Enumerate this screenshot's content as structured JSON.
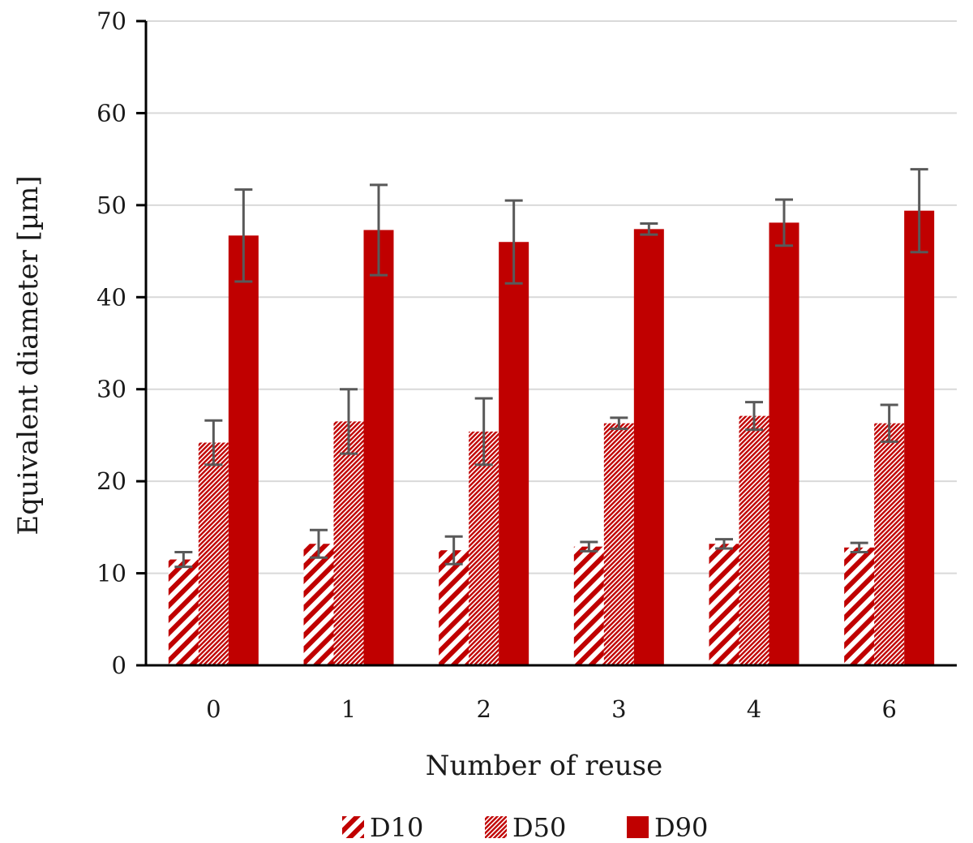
{
  "chart_data": {
    "type": "bar",
    "xlabel": "Number of reuse",
    "ylabel": "Equivalent diameter  [µm]",
    "ylim": [
      0,
      70
    ],
    "yticks": [
      0,
      10,
      20,
      30,
      40,
      50,
      60,
      70
    ],
    "grid": true,
    "legend_position": "bottom",
    "categories": [
      "0",
      "1",
      "2",
      "3",
      "4",
      "6"
    ],
    "series": [
      {
        "name": "D10",
        "pattern": "diagonal-stripes",
        "color": "#C00000",
        "values": [
          11.5,
          13.2,
          12.5,
          12.9,
          13.2,
          12.8
        ],
        "errors": [
          0.8,
          1.5,
          1.5,
          0.5,
          0.5,
          0.5
        ]
      },
      {
        "name": "D50",
        "pattern": "fine-hatch",
        "color": "#C00000",
        "values": [
          24.2,
          26.5,
          25.4,
          26.3,
          27.1,
          26.3
        ],
        "errors": [
          2.4,
          3.5,
          3.6,
          0.6,
          1.5,
          2.0
        ]
      },
      {
        "name": "D90",
        "pattern": "solid",
        "color": "#C00000",
        "values": [
          46.7,
          47.3,
          46.0,
          47.4,
          48.1,
          49.4
        ],
        "errors": [
          5.0,
          4.9,
          4.5,
          0.6,
          2.5,
          4.5
        ]
      }
    ],
    "error_bar_color": "#595959",
    "gridline_color": "#d9d9d9"
  }
}
